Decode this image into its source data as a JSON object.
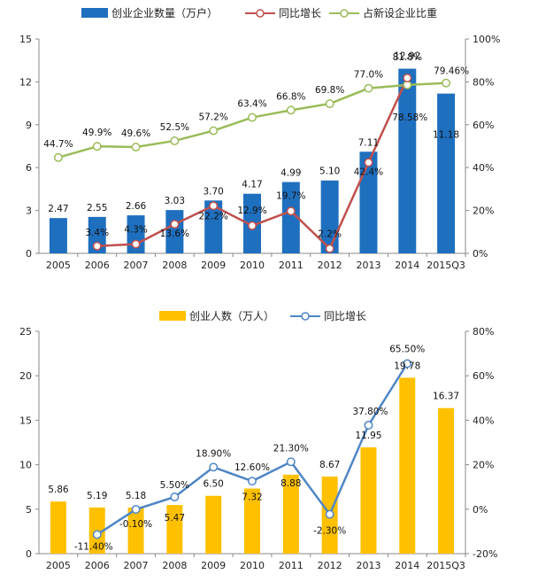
{
  "colors": {
    "bar1": "#1f6fbf",
    "line1a": "#c0504d",
    "line1b": "#9bbb59",
    "bar2": "#ffc000",
    "line2": "#4f86c6",
    "label_red": "#c0392b",
    "label_blue": "#2e86c1"
  },
  "chart_data": [
    {
      "type": "bar+line",
      "categories": [
        "2005",
        "2006",
        "2007",
        "2008",
        "2009",
        "2010",
        "2011",
        "2012",
        "2013",
        "2014",
        "2015Q3"
      ],
      "legend": [
        "创业企业数量（万户）",
        "同比增长",
        "占新设企业比重"
      ],
      "series": [
        {
          "name": "创业企业数量（万户）",
          "axis": "left",
          "type": "bar",
          "values": [
            2.47,
            2.55,
            2.66,
            3.03,
            3.7,
            4.17,
            4.99,
            5.1,
            7.11,
            12.92,
            11.18
          ],
          "labels": [
            "2.47",
            "2.55",
            "2.66",
            "3.03",
            "3.70",
            "4.17",
            "4.99",
            "5.10",
            "7.11",
            "12.92",
            "11.18"
          ]
        },
        {
          "name": "同比增长",
          "axis": "right",
          "type": "line",
          "values": [
            null,
            3.4,
            4.3,
            13.6,
            22.2,
            12.9,
            19.7,
            2.2,
            42.4,
            81.8,
            null
          ],
          "labels": [
            "",
            "3.4%",
            "4.3%",
            "13.6%",
            "22.2%",
            "12.9%",
            "19.7%",
            "2.2%",
            "42.4%",
            "81.8%",
            ""
          ]
        },
        {
          "name": "占新设企业比重",
          "axis": "right",
          "type": "line",
          "values": [
            44.7,
            49.9,
            49.6,
            52.5,
            57.2,
            63.4,
            66.8,
            69.8,
            77.0,
            78.58,
            79.46
          ],
          "labels": [
            "44.7%",
            "49.9%",
            "49.6%",
            "52.5%",
            "57.2%",
            "63.4%",
            "66.8%",
            "69.8%",
            "77.0%",
            "78.58%",
            "79.46%"
          ]
        }
      ],
      "yleft": {
        "min": 0,
        "max": 15,
        "ticks": [
          "0",
          "3",
          "6",
          "9",
          "12",
          "15"
        ]
      },
      "yright": {
        "min": 0,
        "max": 100,
        "ticks": [
          "0%",
          "20%",
          "40%",
          "60%",
          "80%",
          "100%"
        ]
      }
    },
    {
      "type": "bar+line",
      "categories": [
        "2005",
        "2006",
        "2007",
        "2008",
        "2009",
        "2010",
        "2011",
        "2012",
        "2013",
        "2014",
        "2015Q3"
      ],
      "legend": [
        "创业人数（万人）",
        "同比增长"
      ],
      "series": [
        {
          "name": "创业人数（万人）",
          "axis": "left",
          "type": "bar",
          "values": [
            5.86,
            5.19,
            5.18,
            5.47,
            6.5,
            7.32,
            8.88,
            8.67,
            11.95,
            19.78,
            16.37
          ],
          "labels": [
            "5.86",
            "5.19",
            "5.18",
            "5.47",
            "6.50",
            "7.32",
            "8.88",
            "8.67",
            "11.95",
            "19.78",
            "16.37"
          ]
        },
        {
          "name": "同比增长",
          "axis": "right",
          "type": "line",
          "values": [
            null,
            -11.4,
            -0.1,
            5.5,
            18.9,
            12.6,
            21.3,
            -2.3,
            37.8,
            65.5,
            null
          ],
          "labels": [
            "",
            "-11.40%",
            "-0.10%",
            "5.50%",
            "18.90%",
            "12.60%",
            "21.30%",
            "-2.30%",
            "37.80%",
            "65.50%",
            ""
          ]
        }
      ],
      "yleft": {
        "min": 0,
        "max": 25,
        "ticks": [
          "0",
          "5",
          "10",
          "15",
          "20",
          "25"
        ]
      },
      "yright": {
        "min": -20,
        "max": 80,
        "ticks": [
          "-20%",
          "0%",
          "20%",
          "40%",
          "60%",
          "80%"
        ]
      }
    }
  ]
}
